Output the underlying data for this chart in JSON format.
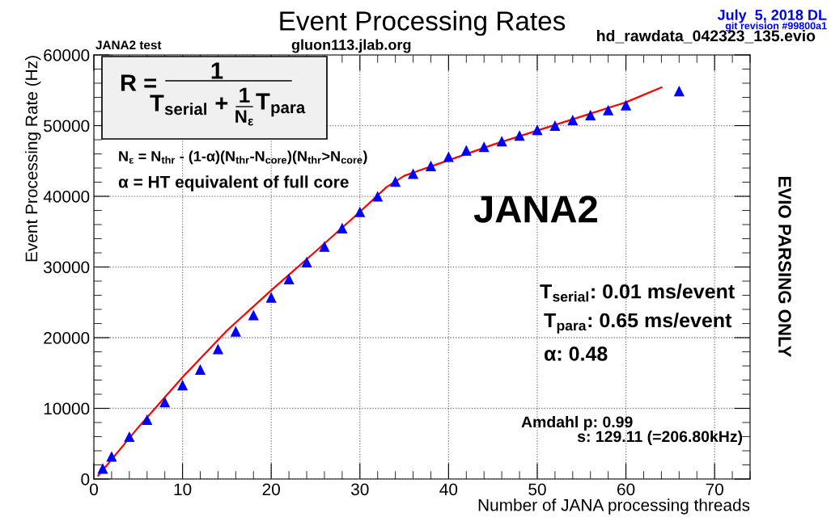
{
  "chart_data": {
    "type": "scatter",
    "title": "Event Processing Rates",
    "xlabel": "Number of JANA processing threads",
    "ylabel": "Event Processing Rate (Hz)",
    "xlim": [
      0,
      74
    ],
    "ylim": [
      0,
      60000
    ],
    "xticks": [
      0,
      10,
      20,
      30,
      40,
      50,
      60,
      70
    ],
    "yticks": [
      0,
      10000,
      20000,
      30000,
      40000,
      50000,
      60000
    ],
    "grid": true,
    "legend": false,
    "series": [
      {
        "marker": "triangle",
        "color": "#0000ff",
        "x": [
          1,
          2,
          4,
          6,
          8,
          10,
          12,
          14,
          16,
          18,
          20,
          22,
          24,
          26,
          28,
          30,
          32,
          34,
          36,
          38,
          40,
          42,
          44,
          46,
          48,
          50,
          52,
          54,
          56,
          58,
          60,
          66
        ],
        "values": [
          1500,
          3200,
          6000,
          8400,
          10900,
          13300,
          15500,
          18400,
          20900,
          23200,
          25700,
          28300,
          30700,
          32900,
          35500,
          37800,
          40000,
          42100,
          43200,
          44300,
          45600,
          46500,
          47000,
          47800,
          48600,
          49400,
          50000,
          50800,
          51500,
          52200,
          52900,
          54900
        ]
      },
      {
        "type": "line",
        "marker": "none",
        "line_style": "solid",
        "color": "#ff0000",
        "x": [
          0.5,
          5,
          10,
          15,
          20,
          25,
          30,
          33,
          35,
          40,
          45,
          50,
          55,
          60,
          64
        ],
        "values": [
          500,
          7300,
          14400,
          21000,
          26700,
          32200,
          37800,
          41300,
          42900,
          45100,
          47300,
          49300,
          51300,
          53300,
          55400
        ]
      }
    ],
    "annotations": [
      "JANA2 test",
      "gluon113.jlab.org",
      "hd_rawdata_042323_135.evio",
      "July  5, 2018 DL",
      "git revision #99800a1",
      "R =",
      "1",
      "T$_{serial}$ +",
      "1",
      "N$_{ε}$",
      "T$_{para}$",
      "N$_{ε}$ = N$_{thr}$ - (1-α)(N$_{thr}$-N$_{core}$)(N$_{thr}$>N$_{core}$)",
      "α = HT equivalent of full core",
      "JANA2",
      "T$_{serial}$: 0.01 ms/event",
      "T$_{para}$: 0.65 ms/event",
      "α: 0.48",
      "Amdahl p: 0.99",
      "s: 129.11 (=206.80kHz)",
      "EVIO PARSING ONLY"
    ]
  }
}
